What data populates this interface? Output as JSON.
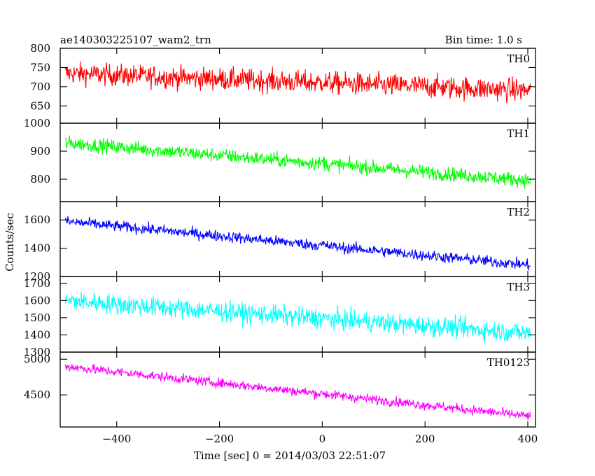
{
  "title": "ae140303225107_wam2_trn",
  "bin_time": "Bin time: 1.0 s",
  "chart_data": {
    "type": "line",
    "xlabel": "Time [sec] 0 = 2014/03/03 22:51:07",
    "ylabel": "Counts/sec",
    "xlim": [
      -510,
      415
    ],
    "x_ticks": [
      -400,
      -200,
      0,
      200,
      400
    ],
    "x_start": -500,
    "x_end": 405,
    "panels": [
      {
        "name": "TH0",
        "color": "#ff0000",
        "ylim": [
          605,
          800
        ],
        "ticks": [
          650,
          700,
          750,
          800
        ],
        "start": 735,
        "end": 690,
        "noise": 20,
        "noise_end": 22,
        "spike": 8
      },
      {
        "name": "TH1",
        "color": "#00ff00",
        "ylim": [
          720,
          1000
        ],
        "ticks": [
          800,
          900,
          1000
        ],
        "start": 930,
        "end": 795,
        "noise": 18,
        "noise_end": 18,
        "spike": 10
      },
      {
        "name": "TH2",
        "color": "#0000ff",
        "ylim": [
          1200,
          1730
        ],
        "ticks": [
          1200,
          1400,
          1600
        ],
        "start": 1590,
        "end": 1280,
        "noise": 28,
        "noise_end": 28,
        "spike": 12
      },
      {
        "name": "TH3",
        "color": "#00ffff",
        "ylim": [
          1300,
          1740
        ],
        "ticks": [
          1300,
          1400,
          1500,
          1600,
          1700
        ],
        "start": 1600,
        "end": 1410,
        "noise": 42,
        "noise_end": 42,
        "spike": 14
      },
      {
        "name": "TH0123",
        "color": "#ff00ff",
        "ylim": [
          4050,
          5100
        ],
        "ticks": [
          4500,
          5000
        ],
        "start": 4900,
        "end": 4200,
        "noise": 48,
        "noise_end": 48,
        "spike": 20
      }
    ]
  }
}
